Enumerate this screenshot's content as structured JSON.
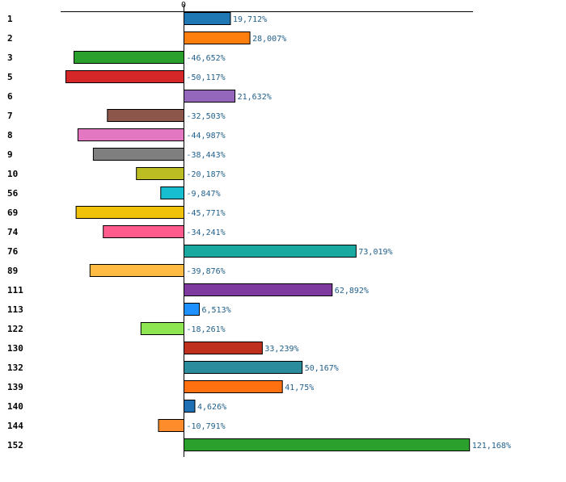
{
  "chart_data": {
    "type": "bar",
    "orientation": "horizontal",
    "zero_label": "0",
    "unit_suffix": "%",
    "decimal_separator": ",",
    "categories": [
      "1",
      "2",
      "3",
      "5",
      "6",
      "7",
      "8",
      "9",
      "10",
      "56",
      "69",
      "74",
      "76",
      "89",
      "111",
      "113",
      "122",
      "130",
      "132",
      "139",
      "140",
      "144",
      "152"
    ],
    "values": [
      19.712,
      28.007,
      -46.652,
      -50.117,
      21.632,
      -32.503,
      -44.987,
      -38.443,
      -20.187,
      -9.847,
      -45.771,
      -34.241,
      73.019,
      -39.876,
      62.892,
      6.513,
      -18.261,
      33.239,
      50.167,
      41.75,
      4.626,
      -10.791,
      121.168
    ],
    "value_labels": [
      "19,712%",
      "28,007%",
      "-46,652%",
      "-50,117%",
      "21,632%",
      "-32,503%",
      "-44,987%",
      "-38,443%",
      "-20,187%",
      "-9,847%",
      "-45,771%",
      "-34,241%",
      "73,019%",
      "-39,876%",
      "62,892%",
      "6,513%",
      "-18,261%",
      "33,239%",
      "50,167%",
      "41,75%",
      "4,626%",
      "-10,791%",
      "121,168%"
    ],
    "colors": [
      "#1f77b4",
      "#ff7f0e",
      "#2ca02c",
      "#d62728",
      "#9467bd",
      "#8c564b",
      "#e377c2",
      "#7f7f7f",
      "#bcbd22",
      "#17becf",
      "#f0c20a",
      "#ff5c8d",
      "#1aa9a0",
      "#ffbb44",
      "#7e3a9e",
      "#1e90ff",
      "#8ee653",
      "#c0301f",
      "#2a8c9c",
      "#ff7010",
      "#1f6fb4",
      "#ff8c2a",
      "#2ca02c"
    ],
    "title": "",
    "xlabel": "",
    "ylabel": "",
    "xlim": [
      -52,
      123
    ],
    "grid": false,
    "legend": "none"
  }
}
